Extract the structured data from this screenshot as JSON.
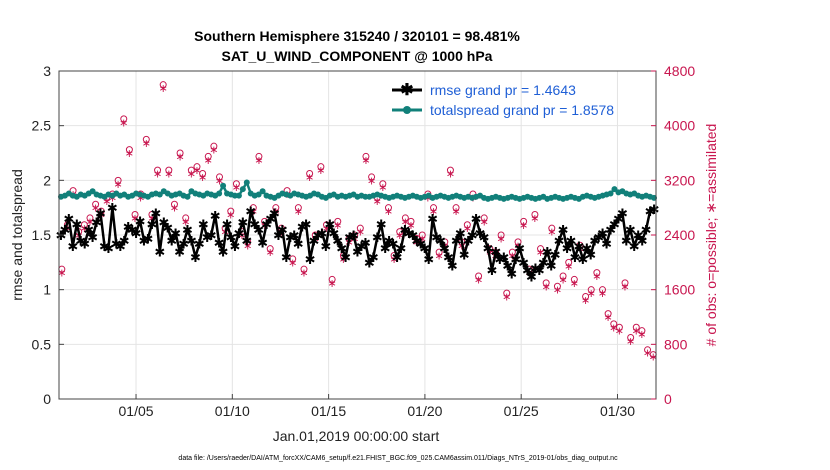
{
  "chart_data": {
    "type": "line",
    "title_line1": "Southern Hemisphere 315240 / 320101 = 98.481%",
    "title_line2": "SAT_U_WIND_COMPONENT @ 1000 hPa",
    "xlabel": "Jan.01,2019 00:00:00 start",
    "ylabel_left": "rmse and totalspread",
    "ylabel_right": "# of obs: o=possible; ∗=assimilated",
    "x_ticks": [
      {
        "day": 5,
        "label": "01/05"
      },
      {
        "day": 10,
        "label": "01/10"
      },
      {
        "day": 15,
        "label": "01/15"
      },
      {
        "day": 20,
        "label": "01/20"
      },
      {
        "day": 25,
        "label": "01/25"
      },
      {
        "day": 30,
        "label": "01/30"
      }
    ],
    "xlim": [
      1,
      32
    ],
    "ylim_left": [
      0,
      3
    ],
    "y_ticks_left": [
      "0",
      "0.5",
      "1",
      "1.5",
      "2",
      "2.5",
      "3"
    ],
    "ylim_right": [
      0,
      4800
    ],
    "y_ticks_right": [
      "0",
      "800",
      "1600",
      "2400",
      "3200",
      "4000",
      "4800"
    ],
    "legend": [
      {
        "label": "rmse grand pr = 1.4643",
        "color": "#000000"
      },
      {
        "label": "totalspread grand pr = 1.8578",
        "color": "#11807a"
      }
    ],
    "rmse": [
      1.5,
      1.55,
      1.65,
      1.4,
      1.6,
      1.45,
      1.42,
      1.55,
      1.48,
      1.62,
      1.7,
      1.4,
      1.38,
      1.75,
      1.42,
      1.4,
      1.45,
      1.58,
      1.55,
      1.52,
      1.63,
      1.45,
      1.47,
      1.6,
      1.7,
      1.35,
      1.62,
      1.57,
      1.45,
      1.52,
      1.35,
      1.42,
      1.55,
      1.45,
      1.3,
      1.42,
      1.6,
      1.48,
      1.5,
      1.68,
      1.43,
      1.35,
      1.6,
      1.48,
      1.4,
      1.52,
      1.62,
      1.45,
      1.72,
      1.6,
      1.55,
      1.43,
      1.6,
      1.65,
      1.7,
      1.5,
      1.55,
      1.3,
      1.48,
      1.5,
      1.42,
      1.58,
      1.6,
      1.28,
      1.45,
      1.5,
      1.52,
      1.4,
      1.6,
      1.52,
      1.45,
      1.38,
      1.3,
      1.48,
      1.5,
      1.35,
      1.4,
      1.43,
      1.25,
      1.3,
      1.48,
      1.6,
      1.38,
      1.45,
      1.42,
      1.3,
      1.38,
      1.55,
      1.52,
      1.5,
      1.45,
      1.42,
      1.38,
      1.28,
      1.65,
      1.48,
      1.45,
      1.38,
      1.3,
      1.22,
      1.45,
      1.52,
      1.32,
      1.45,
      1.5,
      1.65,
      1.52,
      1.48,
      1.38,
      1.18,
      1.35,
      1.28,
      1.3,
      1.22,
      1.15,
      1.28,
      1.38,
      1.25,
      1.18,
      1.12,
      1.2,
      1.18,
      1.25,
      1.35,
      1.22,
      1.32,
      1.45,
      1.55,
      1.38,
      1.45,
      1.3,
      1.4,
      1.28,
      1.38,
      1.32,
      1.45,
      1.48,
      1.52,
      1.42,
      1.55,
      1.6,
      1.65,
      1.7,
      1.45,
      1.55,
      1.4,
      1.5,
      1.45,
      1.55,
      1.72,
      1.74
    ],
    "spread": [
      1.85,
      1.86,
      1.88,
      1.86,
      1.85,
      1.87,
      1.86,
      1.88,
      1.9,
      1.87,
      1.86,
      1.85,
      1.87,
      1.86,
      1.88,
      1.86,
      1.87,
      1.85,
      1.86,
      1.88,
      1.87,
      1.86,
      1.85,
      1.87,
      1.88,
      1.87,
      1.9,
      1.88,
      1.86,
      1.87,
      1.88,
      1.86,
      1.85,
      1.9,
      1.88,
      1.87,
      1.86,
      1.88,
      1.87,
      1.86,
      1.88,
      1.95,
      1.88,
      1.87,
      1.86,
      1.86,
      1.92,
      1.98,
      1.88,
      1.86,
      1.87,
      1.9,
      1.86,
      1.85,
      1.84,
      1.86,
      1.88,
      1.87,
      1.86,
      1.88,
      1.87,
      1.86,
      1.85,
      1.86,
      1.88,
      1.87,
      1.85,
      1.84,
      1.86,
      1.87,
      1.85,
      1.86,
      1.85,
      1.86,
      1.87,
      1.85,
      1.86,
      1.85,
      1.85,
      1.86,
      1.87,
      1.86,
      1.85,
      1.84,
      1.85,
      1.86,
      1.85,
      1.84,
      1.85,
      1.86,
      1.85,
      1.84,
      1.85,
      1.86,
      1.84,
      1.85,
      1.86,
      1.85,
      1.84,
      1.85,
      1.86,
      1.85,
      1.84,
      1.85,
      1.84,
      1.85,
      1.86,
      1.84,
      1.83,
      1.84,
      1.85,
      1.84,
      1.83,
      1.84,
      1.85,
      1.84,
      1.83,
      1.84,
      1.85,
      1.84,
      1.83,
      1.84,
      1.85,
      1.83,
      1.84,
      1.85,
      1.84,
      1.83,
      1.84,
      1.85,
      1.84,
      1.83,
      1.85,
      1.86,
      1.85,
      1.84,
      1.85,
      1.86,
      1.87,
      1.88,
      1.92,
      1.89,
      1.9,
      1.88,
      1.87,
      1.88,
      1.86,
      1.85,
      1.86,
      1.85,
      1.84
    ],
    "obs_possible": [
      1900,
      2550,
      3050,
      2450,
      2550,
      2650,
      2850,
      2750,
      2950,
      3000,
      3200,
      4100,
      3650,
      2700,
      3000,
      3800,
      2700,
      3350,
      4600,
      3350,
      2850,
      3600,
      2650,
      3350,
      3400,
      3300,
      3550,
      3700,
      3250,
      2500,
      2750,
      3150,
      2450,
      2300,
      2800,
      3550,
      2600,
      2200,
      2800,
      2500,
      3050,
      2050,
      2800,
      1900,
      3300,
      2400,
      3400,
      2550,
      1750,
      2600,
      2100,
      2350,
      2400,
      2500,
      3550,
      3250,
      2950,
      3150,
      2800,
      2100,
      2450,
      2650,
      2600,
      2350,
      2400,
      3000,
      2800,
      2150,
      2300,
      3350,
      2800,
      2300,
      2550,
      3000,
      1800,
      2650,
      2200,
      2150,
      2400,
      1550,
      2150,
      2300,
      2600,
      1900,
      2700,
      2200,
      1700,
      2500,
      1650,
      1800,
      2000,
      1750,
      2250,
      1500,
      1600,
      1850,
      1600,
      1250,
      1100,
      1050,
      1700,
      900,
      1050,
      1000,
      720,
      650
    ],
    "obs_assimilated": [
      1850,
      2500,
      3000,
      2400,
      2500,
      2600,
      2800,
      2700,
      2900,
      2950,
      3150,
      4050,
      3600,
      2650,
      2950,
      3750,
      2650,
      3300,
      4550,
      3300,
      2800,
      3550,
      2600,
      3300,
      3350,
      3250,
      3500,
      3650,
      3200,
      2450,
      2700,
      3100,
      2400,
      2250,
      2750,
      3500,
      2550,
      2150,
      2750,
      2450,
      3000,
      2000,
      2750,
      1850,
      3250,
      2350,
      3350,
      2500,
      1700,
      2550,
      2050,
      2300,
      2350,
      2450,
      3500,
      3200,
      2900,
      3100,
      2750,
      2050,
      2400,
      2600,
      2550,
      2300,
      2350,
      2950,
      2750,
      2100,
      2250,
      3300,
      2750,
      2250,
      2500,
      2950,
      1750,
      2600,
      2150,
      2100,
      2350,
      1500,
      2100,
      2250,
      2550,
      1850,
      2650,
      2150,
      1650,
      2450,
      1600,
      1750,
      1950,
      1700,
      2200,
      1450,
      1550,
      1800,
      1550,
      1200,
      1050,
      1000,
      1650,
      850,
      1000,
      950,
      680,
      620
    ]
  },
  "footer": {
    "data_file": "data file: /Users/raeder/DAI/ATM_forcXX/CAM6_setup/f.e21.FHIST_BGC.f09_025.CAM6assim.011/Diags_NTrS_2019-01/obs_diag_output.nc"
  },
  "colors": {
    "rmse": "#000000",
    "spread": "#11807a",
    "obs": "#c8164f",
    "legend_text": "#1f5fd6",
    "grid": "#e4e4e4"
  }
}
